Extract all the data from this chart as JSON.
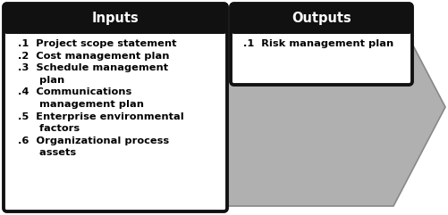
{
  "inputs_title": "Inputs",
  "outputs_title": "Outputs",
  "inputs_items": [
    ".1  Project scope statement",
    ".2  Cost management plan",
    ".3  Schedule management\n      plan",
    ".4  Communications\n      management plan",
    ".5  Enterprise environmental\n      factors",
    ".6  Organizational process\n      assets"
  ],
  "outputs_items": [
    ".1  Risk management plan"
  ],
  "header_bg": "#111111",
  "header_text_color": "#ffffff",
  "box_bg": "#ffffff",
  "box_border": "#111111",
  "arrow_color": "#b0b0b0",
  "arrow_edge_color": "#888888",
  "bg_color": "#ffffff",
  "header_fontsize": 10.5,
  "item_fontsize": 8.2,
  "fig_width": 5.02,
  "fig_height": 2.41,
  "dpi": 100
}
